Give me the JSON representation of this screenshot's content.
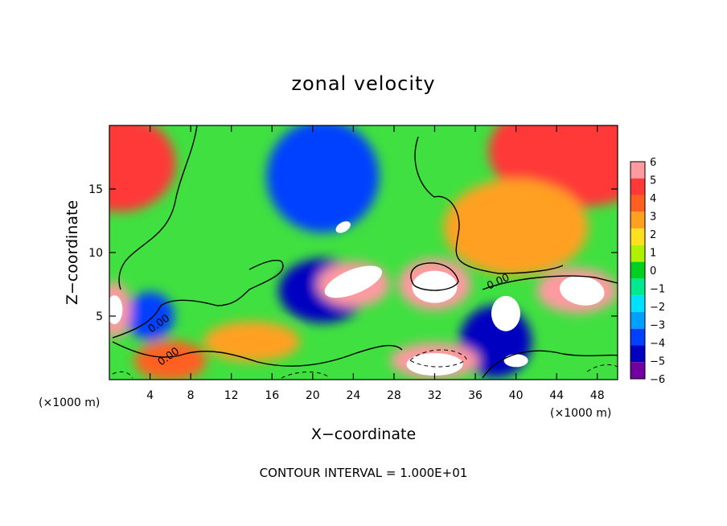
{
  "chart_data": {
    "type": "heatmap",
    "title": "zonal velocity",
    "xlabel": "X−coordinate",
    "ylabel": "Z−coordinate",
    "x_unit_left": "(×1000 m)",
    "x_unit_right": "(×1000 m)",
    "footer": "CONTOUR INTERVAL = 1.000E+01",
    "xlim": [
      0,
      50
    ],
    "ylim": [
      0,
      20
    ],
    "x_ticks": [
      4,
      8,
      12,
      16,
      20,
      24,
      28,
      32,
      36,
      40,
      44,
      48
    ],
    "y_ticks": [
      5,
      10,
      15
    ],
    "contour_labels": [
      "0.00",
      "0.00",
      "0.00"
    ],
    "colorbar": {
      "ticks": [
        6,
        5,
        4,
        3,
        2,
        1,
        0,
        -1,
        -2,
        -3,
        -4,
        -5,
        -6
      ],
      "tick_labels": [
        "6",
        "5",
        "4",
        "3",
        "2",
        "1",
        "0",
        "−1",
        "−2",
        "−3",
        "−4",
        "−5",
        "−6"
      ],
      "colors": [
        "#ff9aa0",
        "#ff3838",
        "#ff6020",
        "#ffa020",
        "#ffe020",
        "#b0f000",
        "#00d020",
        "#00e890",
        "#00e0ff",
        "#00a0ff",
        "#0040ff",
        "#0000c0",
        "#7000a0"
      ]
    },
    "features": [
      {
        "name": "upper-left positive",
        "x": 1,
        "z": 17,
        "value": 5
      },
      {
        "name": "upper-middle negative",
        "x": 21,
        "z": 16,
        "value": -4
      },
      {
        "name": "upper-right positive",
        "x": 46,
        "z": 18,
        "value": 5
      },
      {
        "name": "right-middle positive",
        "x": 40,
        "z": 12,
        "value": 3
      },
      {
        "name": "mid jet negative",
        "x": 21,
        "z": 7,
        "value": -5
      },
      {
        "name": "mid positive core",
        "x": 24,
        "z": 7.5,
        "value": 6
      },
      {
        "name": "lower-mid positive",
        "x": 32,
        "z": 7.5,
        "value": 6
      },
      {
        "name": "lower-right negative",
        "x": 38,
        "z": 3,
        "value": -5
      },
      {
        "name": "right positive",
        "x": 46,
        "z": 7,
        "value": 6
      },
      {
        "name": "lower-left negative",
        "x": 4,
        "z": 5,
        "value": -4
      },
      {
        "name": "bottom positive",
        "x": 32,
        "z": 1.5,
        "value": 6
      },
      {
        "name": "bottom-left positive",
        "x": 6,
        "z": 1.5,
        "value": 4
      },
      {
        "name": "left-edge positive",
        "x": 0.5,
        "z": 5.5,
        "value": 6
      },
      {
        "name": "lower-middle positive",
        "x": 14,
        "z": 3,
        "value": 3
      }
    ]
  }
}
